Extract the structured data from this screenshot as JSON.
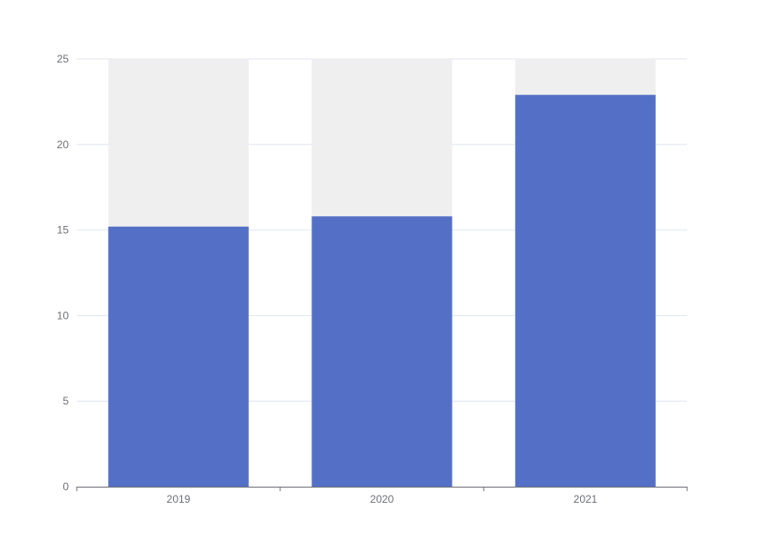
{
  "chart_data": {
    "type": "bar",
    "categories": [
      "2019",
      "2020",
      "2021"
    ],
    "series": [
      {
        "values": [
          15.2,
          15.8,
          22.9
        ]
      }
    ],
    "background_bar_max": 25,
    "ylim": [
      0,
      25
    ],
    "yticks": [
      0,
      5,
      10,
      15,
      20,
      25
    ],
    "grid": true,
    "colors": {
      "bar": "#5470c6",
      "background_bar": "#efefef",
      "grid": "#e0e6f1",
      "axis": "#6e7079",
      "tick_label": "#6e7079"
    }
  }
}
